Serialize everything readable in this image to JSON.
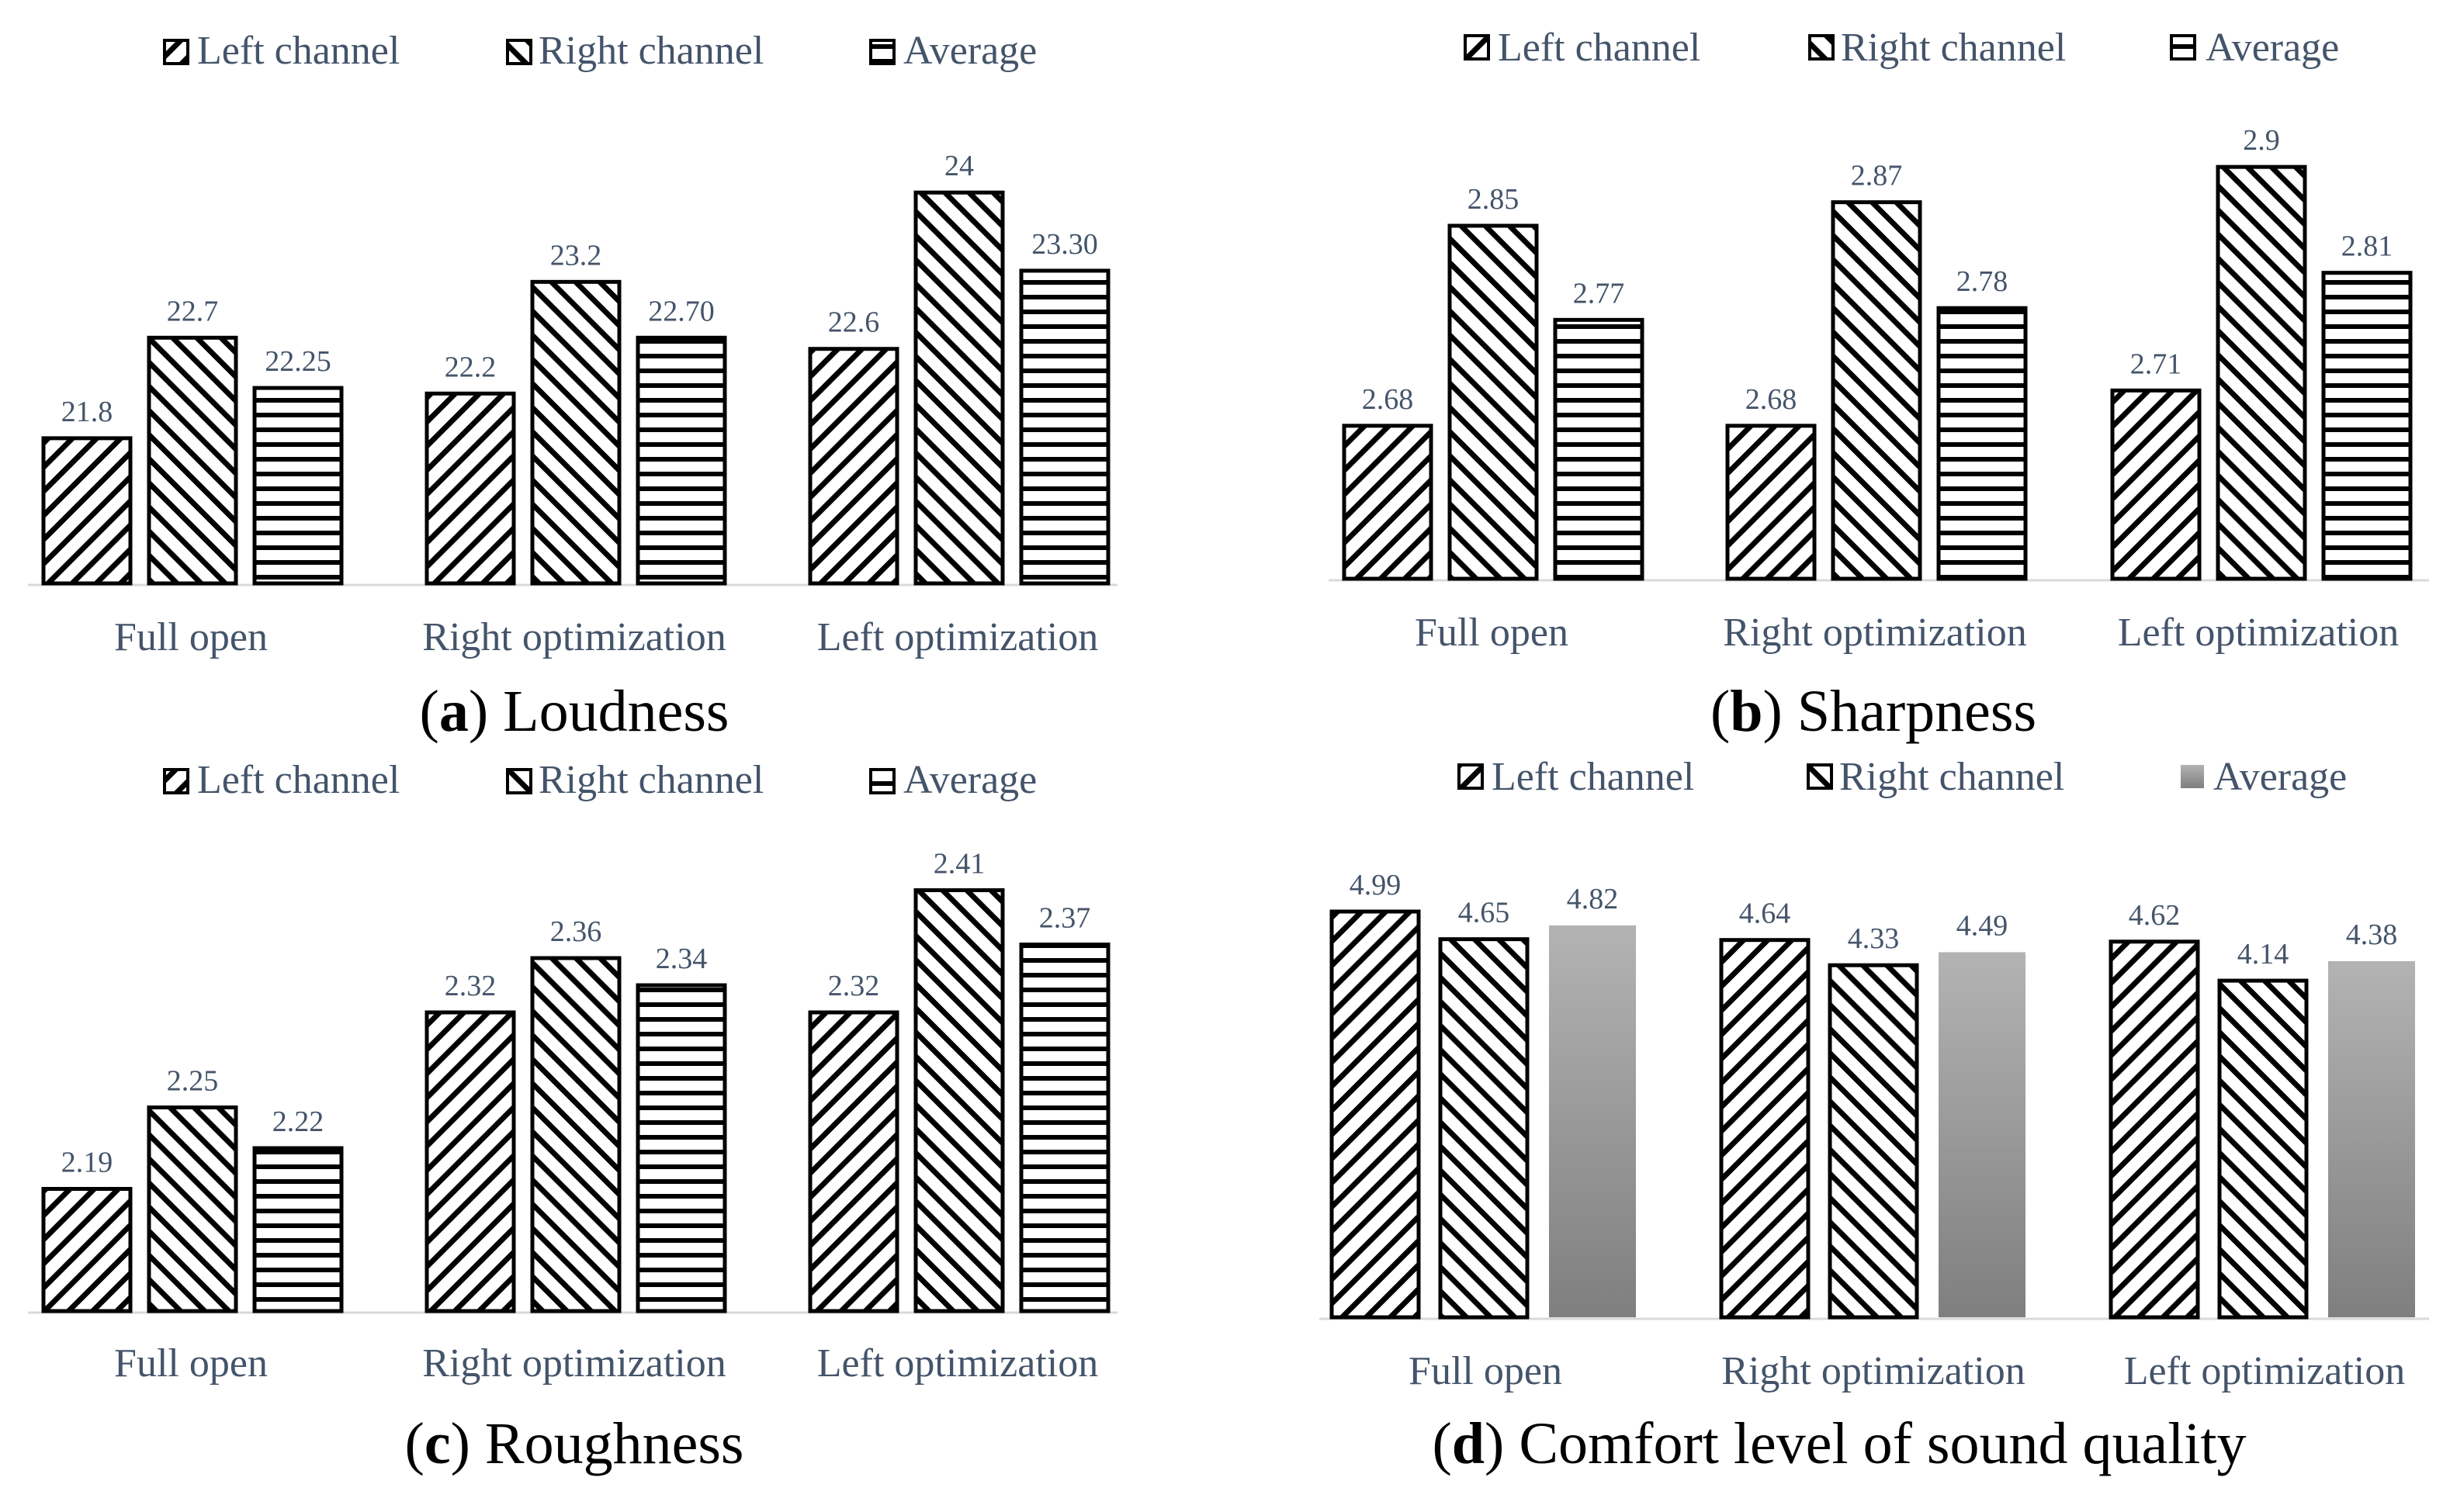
{
  "colors": {
    "text": "#44546a",
    "bar_stroke": "#000000",
    "axis": "#d9d9d9",
    "gray_top": "#b3b3b3",
    "gray_bottom": "#7f7f7f"
  },
  "chart_data": [
    {
      "type": "bar",
      "id": "a",
      "caption_letter": "a",
      "caption_text": "Loudness",
      "categories": [
        "Full open",
        "Right optimization",
        "Left optimization"
      ],
      "series": [
        {
          "name": "Left channel",
          "pattern": "diag-down",
          "values": [
            21.8,
            22.2,
            22.6
          ],
          "labels": [
            "21.8",
            "22.2",
            "22.6"
          ]
        },
        {
          "name": "Right channel",
          "pattern": "diag-up",
          "values": [
            22.7,
            23.2,
            24
          ],
          "labels": [
            "22.7",
            "23.2",
            "24"
          ]
        },
        {
          "name": "Average",
          "pattern": "horizontal",
          "values": [
            22.25,
            22.7,
            23.3
          ],
          "labels": [
            "22.25",
            "22.70",
            "23.30"
          ]
        }
      ],
      "ylim": [
        20.5,
        24.3
      ],
      "xlabel": "",
      "ylabel": "",
      "legend": "top"
    },
    {
      "type": "bar",
      "id": "b",
      "caption_letter": "b",
      "caption_text": "Sharpness",
      "categories": [
        "Full open",
        "Right optimization",
        "Left optimization"
      ],
      "series": [
        {
          "name": "Left channel",
          "pattern": "diag-down",
          "values": [
            2.68,
            2.68,
            2.71
          ],
          "labels": [
            "2.68",
            "2.68",
            "2.71"
          ]
        },
        {
          "name": "Right channel",
          "pattern": "diag-up",
          "values": [
            2.85,
            2.87,
            2.9
          ],
          "labels": [
            "2.85",
            "2.87",
            "2.9"
          ]
        },
        {
          "name": "Average",
          "pattern": "horizontal",
          "values": [
            2.77,
            2.78,
            2.81
          ],
          "labels": [
            "2.77",
            "2.78",
            "2.81"
          ]
        }
      ],
      "ylim": [
        2.55,
        2.91
      ],
      "xlabel": "",
      "ylabel": "",
      "legend": "top"
    },
    {
      "type": "bar",
      "id": "c",
      "caption_letter": "c",
      "caption_text": "Roughness",
      "categories": [
        "Full open",
        "Right optimization",
        "Left optimization"
      ],
      "series": [
        {
          "name": "Left channel",
          "pattern": "diag-down",
          "values": [
            2.19,
            2.32,
            2.32
          ],
          "labels": [
            "2.19",
            "2.32",
            "2.32"
          ]
        },
        {
          "name": "Right channel",
          "pattern": "diag-up",
          "values": [
            2.25,
            2.36,
            2.41
          ],
          "labels": [
            "2.25",
            "2.36",
            "2.41"
          ]
        },
        {
          "name": "Average",
          "pattern": "horizontal",
          "values": [
            2.22,
            2.34,
            2.37
          ],
          "labels": [
            "2.22",
            "2.34",
            "2.37"
          ]
        }
      ],
      "ylim": [
        2.1,
        2.42
      ],
      "xlabel": "",
      "ylabel": "",
      "legend": "top"
    },
    {
      "type": "bar",
      "id": "d",
      "caption_letter": "d",
      "caption_text": "Comfort level of sound quality",
      "categories": [
        "Full open",
        "Right optimization",
        "Left optimization"
      ],
      "series": [
        {
          "name": "Left channel",
          "pattern": "diag-down",
          "values": [
            4.99,
            4.64,
            4.62
          ],
          "labels": [
            "4.99",
            "4.64",
            "4.62"
          ]
        },
        {
          "name": "Right channel",
          "pattern": "diag-up",
          "values": [
            4.65,
            4.33,
            4.14
          ],
          "labels": [
            "4.65",
            "4.33",
            "4.14"
          ]
        },
        {
          "name": "Average",
          "pattern": "gray",
          "values": [
            4.82,
            4.49,
            4.38
          ],
          "labels": [
            "4.82",
            "4.49",
            "4.38"
          ]
        }
      ],
      "ylim": [
        0,
        5.2
      ],
      "xlabel": "",
      "ylabel": "",
      "legend": "top"
    }
  ]
}
